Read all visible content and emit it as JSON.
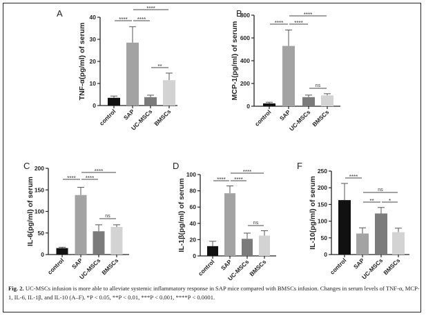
{
  "chart_data": [
    {
      "type": "bar",
      "panel": "A",
      "ylabel": "TNF-α(pg/ml) of serum",
      "ylim": [
        0,
        40
      ],
      "yticks": [
        0,
        10,
        20,
        30,
        40
      ],
      "categories": [
        "control",
        "SAP",
        "UC-MSCs",
        "BMSCs"
      ],
      "values": [
        3.5,
        28.5,
        3.8,
        11.5
      ],
      "errors": [
        0.8,
        7.2,
        0.9,
        3.2
      ],
      "significance": [
        {
          "pair": [
            0,
            1
          ],
          "label": "****"
        },
        {
          "pair": [
            1,
            2
          ],
          "label": "****"
        },
        {
          "pair": [
            1,
            3
          ],
          "label": "****"
        },
        {
          "pair": [
            2,
            3
          ],
          "label": "**"
        }
      ]
    },
    {
      "type": "bar",
      "panel": "B",
      "ylabel": "MCP-1(pg/ml) of serum",
      "ylim": [
        0,
        800
      ],
      "yticks": [
        0,
        200,
        400,
        600,
        800
      ],
      "categories": [
        "control",
        "SAP",
        "UC-MSCs",
        "BMSCs"
      ],
      "values": [
        25,
        530,
        80,
        95
      ],
      "errors": [
        10,
        140,
        18,
        15
      ],
      "significance": [
        {
          "pair": [
            0,
            1
          ],
          "label": "****"
        },
        {
          "pair": [
            1,
            2
          ],
          "label": "****"
        },
        {
          "pair": [
            1,
            3
          ],
          "label": "****"
        },
        {
          "pair": [
            2,
            3
          ],
          "label": "ns"
        }
      ]
    },
    {
      "type": "bar",
      "panel": "C",
      "ylabel": "IL-6(pg/ml) of serum",
      "ylim": [
        0,
        200
      ],
      "yticks": [
        0,
        50,
        100,
        150,
        200
      ],
      "categories": [
        "control",
        "SAP",
        "UC-MSCs",
        "BMSCs"
      ],
      "values": [
        15,
        138,
        54,
        64
      ],
      "errors": [
        2,
        18,
        15,
        5
      ],
      "significance": [
        {
          "pair": [
            0,
            1
          ],
          "label": "****"
        },
        {
          "pair": [
            1,
            2
          ],
          "label": "****"
        },
        {
          "pair": [
            1,
            3
          ],
          "label": "****"
        },
        {
          "pair": [
            2,
            3
          ],
          "label": "ns"
        }
      ]
    },
    {
      "type": "bar",
      "panel": "D",
      "ylabel": "IL-1β(pg/ml) of serum",
      "ylim": [
        0,
        100
      ],
      "yticks": [
        0,
        20,
        40,
        60,
        80,
        100
      ],
      "categories": [
        "control",
        "SAP",
        "UC-MSCs",
        "BMSCs"
      ],
      "values": [
        12,
        77,
        21,
        25
      ],
      "errors": [
        6,
        9,
        7,
        6
      ],
      "significance": [
        {
          "pair": [
            0,
            1
          ],
          "label": "****"
        },
        {
          "pair": [
            1,
            2
          ],
          "label": "****"
        },
        {
          "pair": [
            1,
            3
          ],
          "label": "****"
        },
        {
          "pair": [
            2,
            3
          ],
          "label": "ns"
        }
      ]
    },
    {
      "type": "bar",
      "panel": "F",
      "ylabel": "IL-10(pg/ml) of serum",
      "ylim": [
        0,
        250
      ],
      "yticks": [
        0,
        50,
        100,
        150,
        200,
        250
      ],
      "categories": [
        "control",
        "SAP",
        "UC-MSCs",
        "BMSCs"
      ],
      "values": [
        163,
        63,
        123,
        67
      ],
      "errors": [
        50,
        17,
        18,
        12
      ],
      "significance": [
        {
          "pair": [
            0,
            1
          ],
          "label": "****"
        },
        {
          "pair": [
            1,
            3
          ],
          "label": "ns"
        },
        {
          "pair": [
            1,
            2
          ],
          "label": "**"
        },
        {
          "pair": [
            2,
            3
          ],
          "label": "*"
        }
      ]
    }
  ],
  "colors": {
    "control": "#111111",
    "SAP": "#a3a3a3",
    "UC-MSCs": "#7b7b7b",
    "BMSCs": "#d3d3d3"
  },
  "caption": {
    "label": "Fig. 2.",
    "text": " UC-MSCs infusion is more able to alleviate systemic inflammatory response in SAP mice compared with BMSCs infusion. Changes in serum levels of TNF-α, MCP-1, IL-6, IL-1β, and IL-10 (A–F). *P < 0.05, **P < 0.01, ***P < 0.001, ****P < 0.0001."
  }
}
